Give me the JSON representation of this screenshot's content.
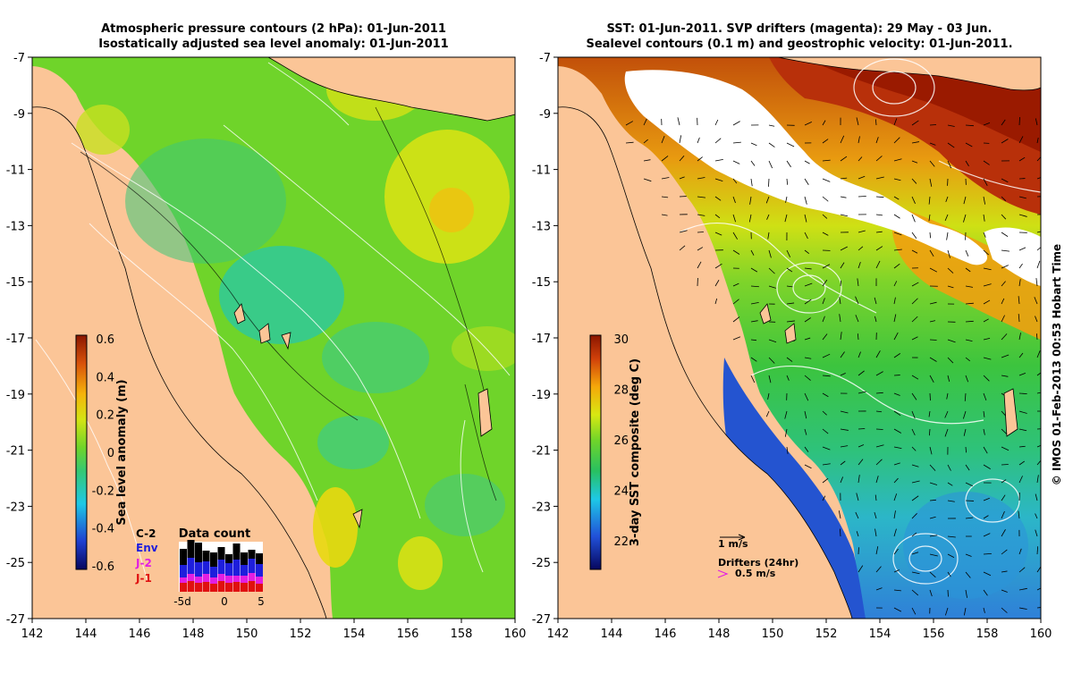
{
  "left_panel": {
    "title_line1": "Atmospheric pressure contours (2 hPa): 01-Jun-2011",
    "title_line2": "Isostatically adjusted sea level anomaly: 01-Jun-2011",
    "colorbar": {
      "label": "Sea level anomaly (m)",
      "range": [
        -0.6,
        0.6
      ],
      "ticks": [
        "0.6",
        "0.4",
        "0.2",
        "0",
        "-0.2",
        "-0.4",
        "-0.6"
      ]
    },
    "inset": {
      "title": "Data count",
      "labels": [
        "C-2",
        "Env",
        "J-2",
        "J-1"
      ],
      "x_ticks": [
        "-5d",
        "0",
        "5"
      ]
    }
  },
  "right_panel": {
    "title_line1": "SST: 01-Jun-2011. SVP drifters (magenta): 29 May - 03 Jun.",
    "title_line2": "Sealevel contours (0.1 m) and geostrophic velocity: 01-Jun-2011.",
    "colorbar": {
      "label": "3-day SST composite (deg C)",
      "range": [
        21,
        30
      ],
      "ticks": [
        "30",
        "28",
        "26",
        "24",
        "22"
      ]
    },
    "velocity_legend": "1 m/s",
    "drifter_legend_title": "Drifters (24hr)",
    "drifter_legend_value": "0.5 m/s"
  },
  "x_ticks": [
    "142",
    "144",
    "146",
    "148",
    "150",
    "152",
    "154",
    "156",
    "158",
    "160"
  ],
  "y_ticks": [
    "-7",
    "-9",
    "-11",
    "-13",
    "-15",
    "-17",
    "-19",
    "-21",
    "-23",
    "-25",
    "-27"
  ],
  "credit": "© IMOS 01-Feb-2013 00:53 Hobart Time",
  "colors": {
    "land": "#fbc597",
    "ocean_green": "#6fd42a",
    "sst_warm": "#a01a00",
    "sst_cool": "#1d46c8"
  }
}
